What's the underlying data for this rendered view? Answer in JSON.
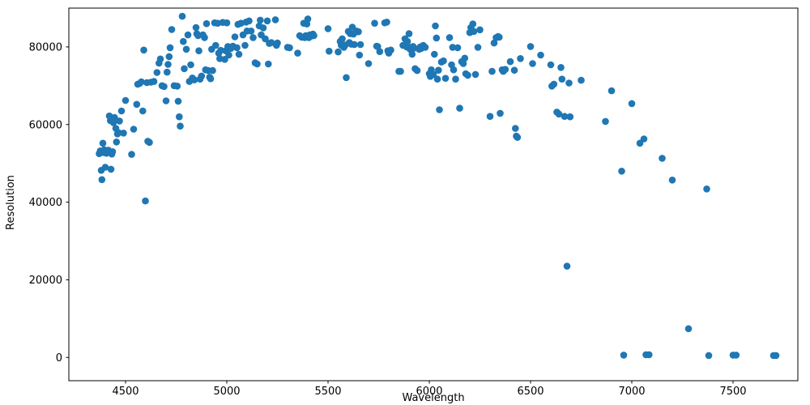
{
  "chart_data": {
    "type": "scatter",
    "title": "",
    "xlabel": "Wavelength",
    "ylabel": "Resolution",
    "xlim": [
      4220,
      7820
    ],
    "ylim": [
      -6000,
      90000
    ],
    "xticks": [
      4500,
      5000,
      5500,
      6000,
      6500,
      7000,
      7500
    ],
    "yticks": [
      0,
      20000,
      40000,
      60000,
      80000
    ],
    "grid": false,
    "legend_position": "none",
    "marker_color": "#1f77b4",
    "points": [
      [
        4370,
        52500
      ],
      [
        4375,
        53200
      ],
      [
        4380,
        48200
      ],
      [
        4383,
        45800
      ],
      [
        4388,
        55200
      ],
      [
        4392,
        52800
      ],
      [
        4395,
        53500
      ],
      [
        4400,
        49000
      ],
      [
        4405,
        52600
      ],
      [
        4410,
        53100
      ],
      [
        4415,
        53400
      ],
      [
        4420,
        62200
      ],
      [
        4425,
        61000
      ],
      [
        4428,
        48500
      ],
      [
        4432,
        52400
      ],
      [
        4436,
        53000
      ],
      [
        4440,
        60500
      ],
      [
        4445,
        61800
      ],
      [
        4450,
        61200
      ],
      [
        4452,
        59000
      ],
      [
        4455,
        55500
      ],
      [
        4460,
        57600
      ],
      [
        4465,
        57900
      ],
      [
        4470,
        60900
      ],
      [
        4480,
        63500
      ],
      [
        4490,
        57800
      ],
      [
        4500,
        66200
      ],
      [
        4530,
        52300
      ],
      [
        4540,
        58800
      ],
      [
        4555,
        65200
      ],
      [
        4560,
        70400
      ],
      [
        4570,
        70600
      ],
      [
        4578,
        71000
      ],
      [
        4585,
        63500
      ],
      [
        4590,
        79200
      ],
      [
        4598,
        40300
      ],
      [
        4605,
        70800
      ],
      [
        4610,
        55700
      ],
      [
        4618,
        55400
      ],
      [
        4625,
        70900
      ],
      [
        4640,
        71100
      ],
      [
        4655,
        73400
      ],
      [
        4665,
        75800
      ],
      [
        4672,
        76900
      ],
      [
        4680,
        70000
      ],
      [
        4690,
        69800
      ],
      [
        4700,
        66100
      ],
      [
        4705,
        73500
      ],
      [
        4710,
        75500
      ],
      [
        4715,
        77500
      ],
      [
        4720,
        79800
      ],
      [
        4728,
        84500
      ],
      [
        4740,
        70000
      ],
      [
        4755,
        69900
      ],
      [
        4760,
        66000
      ],
      [
        4765,
        62000
      ],
      [
        4770,
        59600
      ],
      [
        4780,
        87900
      ],
      [
        4785,
        81400
      ],
      [
        4790,
        74400
      ],
      [
        4800,
        79400
      ],
      [
        4808,
        83100
      ],
      [
        4815,
        71100
      ],
      [
        4822,
        75400
      ],
      [
        4830,
        72000
      ],
      [
        4840,
        71500
      ],
      [
        4848,
        85000
      ],
      [
        4852,
        83400
      ],
      [
        4858,
        82900
      ],
      [
        4862,
        79000
      ],
      [
        4868,
        71700
      ],
      [
        4875,
        72500
      ],
      [
        4882,
        83100
      ],
      [
        4890,
        82400
      ],
      [
        4895,
        74100
      ],
      [
        4900,
        86000
      ],
      [
        4908,
        73900
      ],
      [
        4915,
        72200
      ],
      [
        4920,
        71800
      ],
      [
        4925,
        79400
      ],
      [
        4930,
        73900
      ],
      [
        4940,
        86200
      ],
      [
        4945,
        80400
      ],
      [
        4955,
        86100
      ],
      [
        4960,
        78400
      ],
      [
        4965,
        77000
      ],
      [
        4970,
        79100
      ],
      [
        4980,
        86300
      ],
      [
        4990,
        76800
      ],
      [
        4995,
        79000
      ],
      [
        5000,
        86200
      ],
      [
        5005,
        80100
      ],
      [
        5010,
        77900
      ],
      [
        5020,
        79600
      ],
      [
        5030,
        80200
      ],
      [
        5040,
        82600
      ],
      [
        5050,
        79800
      ],
      [
        5055,
        85800
      ],
      [
        5060,
        78100
      ],
      [
        5070,
        86100
      ],
      [
        5080,
        83100
      ],
      [
        5090,
        80400
      ],
      [
        5095,
        86400
      ],
      [
        5100,
        84100
      ],
      [
        5110,
        86700
      ],
      [
        5120,
        84100
      ],
      [
        5130,
        82400
      ],
      [
        5140,
        75900
      ],
      [
        5150,
        75600
      ],
      [
        5160,
        85400
      ],
      [
        5165,
        86900
      ],
      [
        5170,
        83100
      ],
      [
        5180,
        84900
      ],
      [
        5190,
        82100
      ],
      [
        5200,
        86700
      ],
      [
        5205,
        75600
      ],
      [
        5210,
        80900
      ],
      [
        5220,
        81100
      ],
      [
        5240,
        87000
      ],
      [
        5245,
        80400
      ],
      [
        5250,
        81000
      ],
      [
        5300,
        79900
      ],
      [
        5310,
        79800
      ],
      [
        5350,
        78400
      ],
      [
        5360,
        82900
      ],
      [
        5370,
        82500
      ],
      [
        5380,
        86100
      ],
      [
        5385,
        82400
      ],
      [
        5390,
        82900
      ],
      [
        5395,
        85900
      ],
      [
        5400,
        87200
      ],
      [
        5405,
        82400
      ],
      [
        5410,
        83100
      ],
      [
        5418,
        82800
      ],
      [
        5425,
        83300
      ],
      [
        5430,
        82900
      ],
      [
        5500,
        84700
      ],
      [
        5505,
        78900
      ],
      [
        5550,
        78700
      ],
      [
        5560,
        81400
      ],
      [
        5565,
        80400
      ],
      [
        5570,
        82100
      ],
      [
        5578,
        79900
      ],
      [
        5585,
        80500
      ],
      [
        5590,
        72100
      ],
      [
        5600,
        84000
      ],
      [
        5605,
        81100
      ],
      [
        5610,
        83400
      ],
      [
        5615,
        80700
      ],
      [
        5620,
        85100
      ],
      [
        5625,
        83300
      ],
      [
        5630,
        80600
      ],
      [
        5640,
        84100
      ],
      [
        5650,
        83900
      ],
      [
        5655,
        77900
      ],
      [
        5660,
        80600
      ],
      [
        5700,
        75700
      ],
      [
        5730,
        86100
      ],
      [
        5740,
        80200
      ],
      [
        5745,
        80100
      ],
      [
        5755,
        78800
      ],
      [
        5780,
        86200
      ],
      [
        5790,
        86400
      ],
      [
        5795,
        79000
      ],
      [
        5800,
        78400
      ],
      [
        5810,
        79200
      ],
      [
        5850,
        73700
      ],
      [
        5858,
        73700
      ],
      [
        5870,
        80400
      ],
      [
        5880,
        82100
      ],
      [
        5888,
        80000
      ],
      [
        5892,
        81400
      ],
      [
        5900,
        83400
      ],
      [
        5905,
        79400
      ],
      [
        5910,
        79900
      ],
      [
        5915,
        78100
      ],
      [
        5920,
        80100
      ],
      [
        5925,
        79700
      ],
      [
        5930,
        74400
      ],
      [
        5940,
        73900
      ],
      [
        5950,
        79400
      ],
      [
        5955,
        80000
      ],
      [
        5960,
        79600
      ],
      [
        5970,
        80400
      ],
      [
        5980,
        79900
      ],
      [
        6000,
        73100
      ],
      [
        6005,
        72400
      ],
      [
        6010,
        74100
      ],
      [
        6020,
        72900
      ],
      [
        6025,
        78100
      ],
      [
        6030,
        85400
      ],
      [
        6035,
        82300
      ],
      [
        6040,
        71700
      ],
      [
        6045,
        74000
      ],
      [
        6050,
        63800
      ],
      [
        6060,
        76100
      ],
      [
        6070,
        76400
      ],
      [
        6080,
        71900
      ],
      [
        6100,
        82400
      ],
      [
        6110,
        75400
      ],
      [
        6115,
        79900
      ],
      [
        6120,
        74100
      ],
      [
        6130,
        71700
      ],
      [
        6140,
        79800
      ],
      [
        6150,
        64200
      ],
      [
        6160,
        76200
      ],
      [
        6168,
        75700
      ],
      [
        6175,
        77100
      ],
      [
        6180,
        73100
      ],
      [
        6190,
        72700
      ],
      [
        6200,
        83700
      ],
      [
        6205,
        85000
      ],
      [
        6210,
        84100
      ],
      [
        6215,
        85900
      ],
      [
        6220,
        84000
      ],
      [
        6228,
        72900
      ],
      [
        6240,
        79900
      ],
      [
        6250,
        84400
      ],
      [
        6300,
        62100
      ],
      [
        6310,
        73700
      ],
      [
        6320,
        81000
      ],
      [
        6330,
        82400
      ],
      [
        6340,
        82700
      ],
      [
        6345,
        82500
      ],
      [
        6350,
        62900
      ],
      [
        6360,
        74100
      ],
      [
        6365,
        73700
      ],
      [
        6375,
        74200
      ],
      [
        6400,
        76200
      ],
      [
        6420,
        74000
      ],
      [
        6425,
        59000
      ],
      [
        6430,
        57000
      ],
      [
        6435,
        56700
      ],
      [
        6450,
        77000
      ],
      [
        6500,
        80100
      ],
      [
        6510,
        75700
      ],
      [
        6550,
        77900
      ],
      [
        6600,
        75400
      ],
      [
        6605,
        69900
      ],
      [
        6615,
        70400
      ],
      [
        6630,
        63200
      ],
      [
        6640,
        62700
      ],
      [
        6650,
        74700
      ],
      [
        6655,
        71700
      ],
      [
        6668,
        62100
      ],
      [
        6680,
        23500
      ],
      [
        6690,
        70700
      ],
      [
        6695,
        62000
      ],
      [
        6750,
        71400
      ],
      [
        6870,
        60800
      ],
      [
        6900,
        68700
      ],
      [
        6950,
        48000
      ],
      [
        6960,
        600
      ],
      [
        7000,
        65400
      ],
      [
        7040,
        55200
      ],
      [
        7060,
        56300
      ],
      [
        7070,
        700
      ],
      [
        7085,
        700
      ],
      [
        7150,
        51300
      ],
      [
        7200,
        45700
      ],
      [
        7280,
        7400
      ],
      [
        7370,
        43400
      ],
      [
        7380,
        500
      ],
      [
        7500,
        600
      ],
      [
        7515,
        600
      ],
      [
        7700,
        500
      ],
      [
        7712,
        500
      ]
    ]
  }
}
